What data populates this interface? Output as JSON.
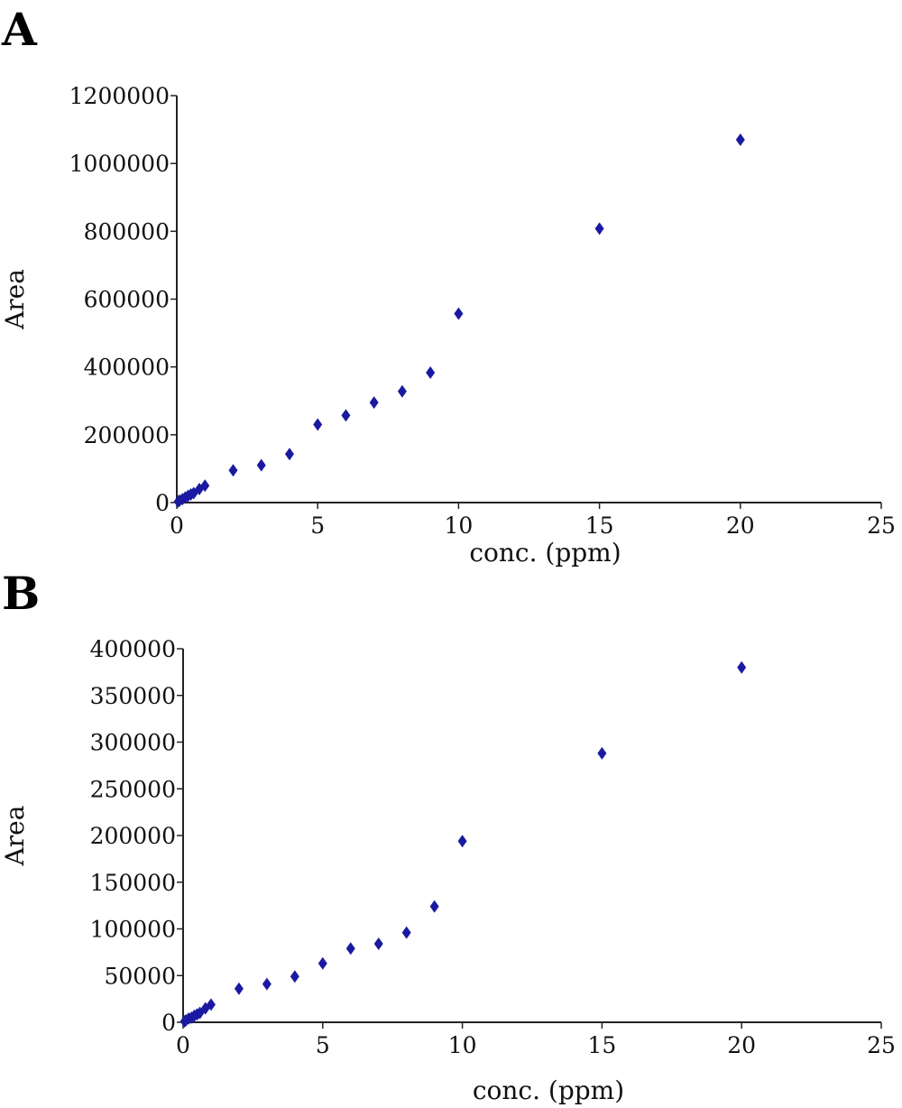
{
  "chart_data": [
    {
      "type": "scatter",
      "panel_label": "A",
      "xlabel": "conc. (ppm)",
      "ylabel": "Area",
      "xlim": [
        0,
        25
      ],
      "ylim": [
        0,
        1200000
      ],
      "x_ticks": [
        0,
        5,
        10,
        15,
        20,
        25
      ],
      "y_ticks": [
        0,
        200000,
        400000,
        600000,
        800000,
        1000000,
        1200000
      ],
      "x_tick_labels": [
        "0",
        "5",
        "10",
        "15",
        "20",
        "25"
      ],
      "y_tick_labels": [
        "0",
        "200000",
        "400000",
        "600000",
        "800000",
        "1000000",
        "1200000"
      ],
      "grid": false,
      "marker": "diamond",
      "color": "#1a1aa0",
      "series": [
        {
          "x": [
            0.05,
            0.1,
            0.2,
            0.3,
            0.4,
            0.5,
            0.6,
            0.8,
            1,
            2,
            3,
            4,
            5,
            6,
            7,
            8,
            9,
            10,
            15,
            20
          ],
          "y": [
            3000,
            6000,
            10000,
            15000,
            20000,
            24000,
            28000,
            40000,
            50000,
            95000,
            110000,
            143000,
            230000,
            257000,
            295000,
            328000,
            383000,
            557000,
            808000,
            1070000
          ]
        }
      ]
    },
    {
      "type": "scatter",
      "panel_label": "B",
      "xlabel": "conc. (ppm)",
      "ylabel": "Area",
      "xlim": [
        0,
        25
      ],
      "ylim": [
        0,
        400000
      ],
      "x_ticks": [
        0,
        5,
        10,
        15,
        20,
        25
      ],
      "y_ticks": [
        0,
        50000,
        100000,
        150000,
        200000,
        250000,
        300000,
        350000,
        400000
      ],
      "x_tick_labels": [
        "0",
        "5",
        "10",
        "15",
        "20",
        "25"
      ],
      "y_tick_labels": [
        "0",
        "50000",
        "100000",
        "150000",
        "200000",
        "250000",
        "300000",
        "350000",
        "400000"
      ],
      "grid": false,
      "marker": "diamond",
      "color": "#1a1aa0",
      "series": [
        {
          "x": [
            0.05,
            0.1,
            0.2,
            0.3,
            0.4,
            0.5,
            0.6,
            0.8,
            1,
            2,
            3,
            4,
            5,
            6,
            7,
            8,
            9,
            10,
            15,
            20
          ],
          "y": [
            1000,
            2000,
            4000,
            5000,
            7000,
            8500,
            10000,
            15000,
            19000,
            36000,
            41000,
            49000,
            63000,
            79000,
            84000,
            96000,
            124000,
            194000,
            288000,
            380000
          ]
        }
      ]
    }
  ]
}
